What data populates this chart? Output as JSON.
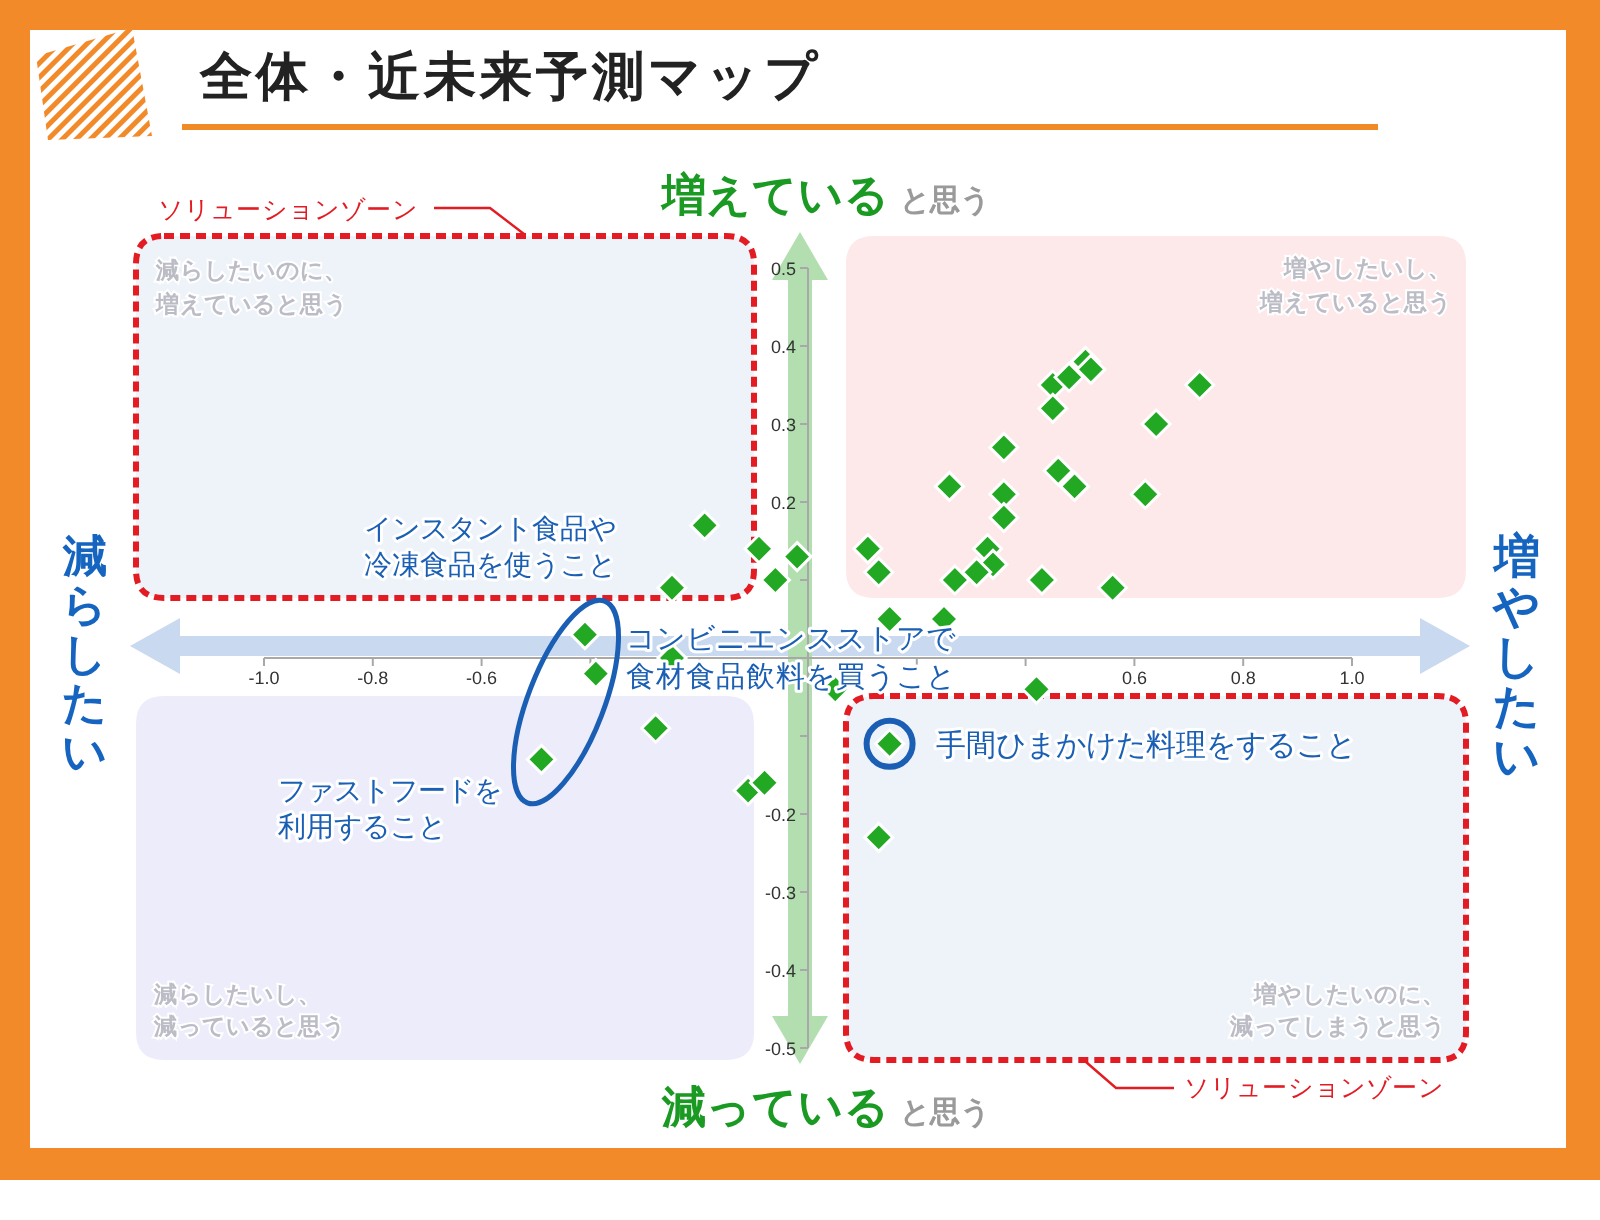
{
  "chart_data": {
    "type": "scatter",
    "title": "全体・近未来予測マップ",
    "x": [
      0.51,
      0.52,
      0.45,
      0.48,
      0.72,
      0.45,
      0.64,
      0.36,
      0.26,
      0.36,
      0.46,
      0.49,
      0.62,
      0.36,
      0.33,
      0.34,
      0.31,
      0.27,
      0.11,
      0.13,
      0.43,
      0.56,
      0.15,
      0.25,
      -0.02,
      -0.06,
      -0.09,
      -0.19,
      -0.25,
      -0.41,
      -0.25,
      -0.39,
      -0.28,
      -0.49,
      -0.11,
      -0.08,
      0.42,
      0.05,
      0.15,
      0.13
    ],
    "series": [
      {
        "color": "#22a822",
        "values": [
          0.38,
          0.37,
          0.35,
          0.36,
          0.35,
          0.32,
          0.3,
          0.27,
          0.22,
          0.21,
          0.24,
          0.22,
          0.21,
          0.18,
          0.14,
          0.12,
          0.11,
          0.1,
          0.14,
          0.11,
          0.1,
          0.09,
          0.05,
          0.05,
          0.13,
          0.1,
          0.14,
          0.17,
          0.09,
          0.03,
          0.0,
          -0.02,
          -0.09,
          -0.13,
          -0.17,
          -0.16,
          -0.04,
          -0.04,
          -0.11,
          -0.23
        ]
      }
    ],
    "marker": "diamond",
    "xlim": [
      -1,
      1
    ],
    "ylim": [
      -0.5,
      0.5
    ],
    "xticks": [
      {
        "value": -1,
        "label": "-1.0"
      },
      -0.8,
      -0.6,
      {
        "value": -0.4,
        "label": null
      },
      {
        "value": -0.2,
        "label": null
      },
      {
        "value": 0.2,
        "label": null
      },
      {
        "value": 0.4,
        "label": null
      },
      0.6,
      0.8,
      {
        "value": 1,
        "label": "1.0"
      }
    ],
    "yticks": [
      0.5,
      0.4,
      0.3,
      0.2,
      {
        "value": 0.1,
        "label": null
      },
      {
        "value": -0.1,
        "label": null
      },
      -0.2,
      -0.3,
      -0.4,
      -0.5
    ],
    "annotations": [
      "増えている",
      "と思う",
      "減っている",
      "と思う",
      "減らしたい",
      "増やしたい",
      "減らしたいのに、増えていると思う",
      "増やしたいし、増えていると思う",
      "減らしたいし、減っていると思う",
      "増やしたいのに、減ってしまうと思う",
      "ソリューションゾーン",
      "ソリューションゾーン",
      "インスタント食品や冷凍食品を使うこと",
      "コンビニエンスストアで食材食品飲料を買うこと",
      "ファストフードを利用すること",
      {
        "text": "手間ひまかけた料理をすること",
        "x": 0.15,
        "y": -0.11
      }
    ]
  }
}
